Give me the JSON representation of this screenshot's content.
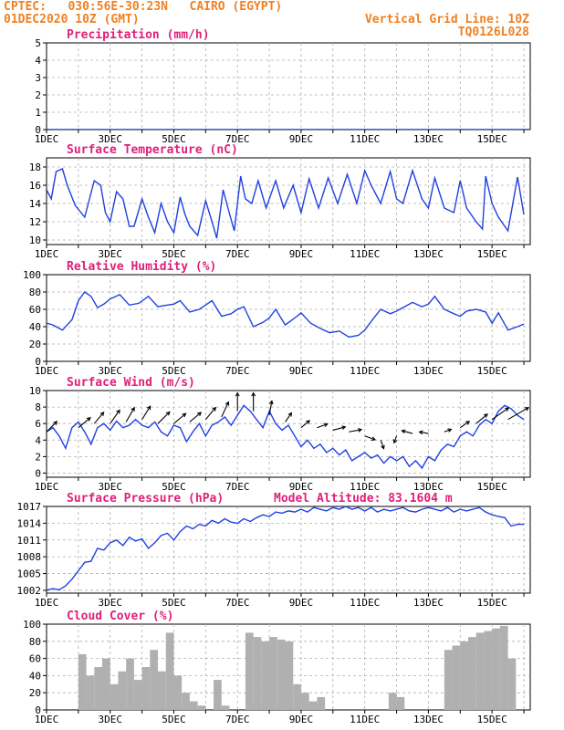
{
  "header": {
    "left_line1": "CPTEC:   030:56E-30:23N   CAIRO (EGYPT)",
    "left_line2": "01DEC2020 10Z (GMT)",
    "right_line1": "Vertical Grid Line: 10Z",
    "right_line2": "TQ0126L028"
  },
  "colors": {
    "header": "#f08020",
    "title": "#e0207a",
    "line": "#2040e0",
    "bar": "#b0b0b0",
    "grid": "#b0b0b0"
  },
  "chart_data": [
    {
      "type": "line",
      "title": "Precipitation (mm/h)",
      "ylim": [
        0,
        5
      ],
      "yticks": [
        0,
        1,
        2,
        3,
        4,
        5
      ],
      "xtick_labels": [
        "1DEC",
        "3DEC",
        "5DEC",
        "7DEC",
        "9DEC",
        "11DEC",
        "13DEC",
        "15DEC"
      ],
      "x": [
        1,
        3,
        5,
        7,
        9,
        11,
        13,
        15,
        16.2
      ],
      "values": [
        0,
        0,
        0,
        0,
        0,
        0,
        0,
        0,
        0
      ]
    },
    {
      "type": "line",
      "title": "Surface Temperature (nC)",
      "ylim": [
        9.5,
        19
      ],
      "yticks": [
        10,
        12,
        14,
        16,
        18
      ],
      "xtick_labels": [
        "1DEC",
        "3DEC",
        "5DEC",
        "7DEC",
        "9DEC",
        "11DEC",
        "13DEC",
        "15DEC"
      ],
      "x": [
        1.0,
        1.15,
        1.3,
        1.5,
        1.65,
        1.9,
        2.2,
        2.5,
        2.7,
        2.85,
        3.0,
        3.2,
        3.4,
        3.6,
        3.75,
        4.0,
        4.2,
        4.4,
        4.6,
        4.8,
        5.0,
        5.2,
        5.35,
        5.5,
        5.75,
        6.0,
        6.2,
        6.35,
        6.55,
        6.7,
        6.9,
        7.1,
        7.25,
        7.45,
        7.65,
        7.9,
        8.2,
        8.45,
        8.75,
        9.0,
        9.25,
        9.55,
        9.85,
        10.15,
        10.45,
        10.75,
        11.0,
        11.2,
        11.5,
        11.8,
        12.0,
        12.2,
        12.5,
        12.8,
        13.0,
        13.2,
        13.5,
        13.8,
        14.0,
        14.2,
        14.5,
        14.7,
        14.8,
        15.0,
        15.2,
        15.5,
        15.8,
        16.0
      ],
      "values": [
        15.5,
        14.5,
        17.5,
        17.8,
        16.0,
        13.8,
        12.5,
        16.5,
        16.0,
        13.0,
        12.0,
        15.3,
        14.5,
        11.5,
        11.5,
        14.5,
        12.5,
        10.8,
        14.0,
        12.0,
        10.8,
        14.7,
        12.8,
        11.5,
        10.5,
        14.3,
        12.0,
        10.2,
        15.5,
        13.5,
        11.0,
        17.0,
        14.5,
        14.0,
        16.5,
        13.5,
        16.5,
        13.5,
        16.0,
        13.0,
        16.7,
        13.5,
        16.8,
        14.0,
        17.2,
        14.0,
        17.6,
        16.0,
        14.0,
        17.5,
        14.5,
        14.0,
        17.6,
        14.5,
        13.5,
        16.8,
        13.5,
        13.0,
        16.5,
        13.5,
        12.0,
        11.2,
        17.0,
        14.0,
        12.5,
        11.0,
        16.9,
        12.8
      ]
    },
    {
      "type": "line",
      "title": "Relative Humidity (%)",
      "ylim": [
        0,
        100
      ],
      "yticks": [
        0,
        20,
        40,
        60,
        80,
        100
      ],
      "xtick_labels": [
        "1DEC",
        "3DEC",
        "5DEC",
        "7DEC",
        "9DEC",
        "11DEC",
        "13DEC",
        "15DEC"
      ],
      "x": [
        1.0,
        1.2,
        1.5,
        1.8,
        2.0,
        2.2,
        2.4,
        2.6,
        2.8,
        3.0,
        3.3,
        3.6,
        3.9,
        4.2,
        4.5,
        4.8,
        5.0,
        5.2,
        5.5,
        5.8,
        6.0,
        6.2,
        6.5,
        6.8,
        7.0,
        7.2,
        7.5,
        7.8,
        8.0,
        8.2,
        8.5,
        8.8,
        9.0,
        9.3,
        9.6,
        9.9,
        10.2,
        10.5,
        10.8,
        11.0,
        11.2,
        11.5,
        11.8,
        12.0,
        12.2,
        12.5,
        12.8,
        13.0,
        13.2,
        13.5,
        13.8,
        14.0,
        14.2,
        14.5,
        14.8,
        15.0,
        15.2,
        15.5,
        15.8,
        16.0
      ],
      "values": [
        44,
        42,
        36,
        48,
        70,
        80,
        75,
        62,
        66,
        72,
        77,
        65,
        67,
        75,
        63,
        65,
        66,
        70,
        57,
        60,
        65,
        70,
        52,
        55,
        60,
        63,
        40,
        45,
        50,
        60,
        42,
        50,
        56,
        44,
        38,
        33,
        35,
        28,
        30,
        36,
        46,
        60,
        55,
        58,
        62,
        68,
        63,
        66,
        75,
        60,
        55,
        52,
        58,
        60,
        57,
        44,
        56,
        36,
        40,
        43
      ]
    },
    {
      "type": "line",
      "title": "Surface Wind (m/s)",
      "ylim": [
        -0.5,
        10
      ],
      "yticks": [
        0,
        2,
        4,
        6,
        8,
        10
      ],
      "xtick_labels": [
        "1DEC",
        "3DEC",
        "5DEC",
        "7DEC",
        "9DEC",
        "11DEC",
        "13DEC",
        "15DEC"
      ],
      "x": [
        1.0,
        1.2,
        1.4,
        1.6,
        1.8,
        2.0,
        2.2,
        2.4,
        2.6,
        2.8,
        3.0,
        3.2,
        3.4,
        3.6,
        3.8,
        4.0,
        4.2,
        4.4,
        4.6,
        4.8,
        5.0,
        5.2,
        5.4,
        5.6,
        5.8,
        6.0,
        6.2,
        6.4,
        6.6,
        6.8,
        7.0,
        7.2,
        7.4,
        7.6,
        7.8,
        8.0,
        8.2,
        8.4,
        8.6,
        8.8,
        9.0,
        9.2,
        9.4,
        9.6,
        9.8,
        10.0,
        10.2,
        10.4,
        10.6,
        10.8,
        11.0,
        11.2,
        11.4,
        11.6,
        11.8,
        12.0,
        12.2,
        12.4,
        12.6,
        12.8,
        13.0,
        13.2,
        13.4,
        13.6,
        13.8,
        14.0,
        14.2,
        14.4,
        14.6,
        14.8,
        15.0,
        15.2,
        15.4,
        15.6,
        15.8,
        16.0
      ],
      "values": [
        5.0,
        5.5,
        4.5,
        3.0,
        5.5,
        6.2,
        5.0,
        3.5,
        5.5,
        6.0,
        5.2,
        6.3,
        5.5,
        5.8,
        6.5,
        5.8,
        5.5,
        6.2,
        5.0,
        4.5,
        5.8,
        5.5,
        3.8,
        5.0,
        6.0,
        4.5,
        5.8,
        6.2,
        6.8,
        5.8,
        7.0,
        8.2,
        7.5,
        6.5,
        5.5,
        7.5,
        6.0,
        5.2,
        5.8,
        4.5,
        3.2,
        4.0,
        3.0,
        3.5,
        2.5,
        3.0,
        2.2,
        2.8,
        1.5,
        2.0,
        2.5,
        1.8,
        2.2,
        1.2,
        2.0,
        1.5,
        2.0,
        0.8,
        1.5,
        0.6,
        2.0,
        1.5,
        2.8,
        3.5,
        3.2,
        4.5,
        5.0,
        4.5,
        5.8,
        6.5,
        6.0,
        7.5,
        8.2,
        7.8,
        7.0,
        6.5
      ]
    },
    {
      "type": "line",
      "title": "Surface Pressure (hPa)",
      "annotation": "Model Altitude: 83.1604 m",
      "ylim": [
        1001.5,
        1017
      ],
      "yticks": [
        1002,
        1005,
        1008,
        1011,
        1014,
        1017
      ],
      "xtick_labels": [
        "1DEC",
        "3DEC",
        "5DEC",
        "7DEC",
        "9DEC",
        "11DEC",
        "13DEC",
        "15DEC"
      ],
      "x": [
        1.0,
        1.2,
        1.4,
        1.6,
        1.8,
        2.0,
        2.2,
        2.4,
        2.6,
        2.8,
        3.0,
        3.2,
        3.4,
        3.6,
        3.8,
        4.0,
        4.2,
        4.4,
        4.6,
        4.8,
        5.0,
        5.2,
        5.4,
        5.6,
        5.8,
        6.0,
        6.2,
        6.4,
        6.6,
        6.8,
        7.0,
        7.2,
        7.4,
        7.6,
        7.8,
        8.0,
        8.2,
        8.4,
        8.6,
        8.8,
        9.0,
        9.2,
        9.4,
        9.6,
        9.8,
        10.0,
        10.2,
        10.4,
        10.6,
        10.8,
        11.0,
        11.2,
        11.4,
        11.6,
        11.8,
        12.0,
        12.2,
        12.4,
        12.6,
        12.8,
        13.0,
        13.2,
        13.4,
        13.6,
        13.8,
        14.0,
        14.2,
        14.4,
        14.6,
        14.8,
        15.0,
        15.2,
        15.4,
        15.6,
        15.8,
        16.0
      ],
      "values": [
        1002.0,
        1002.3,
        1002.1,
        1002.8,
        1004.0,
        1005.5,
        1007.0,
        1007.2,
        1009.5,
        1009.2,
        1010.5,
        1011.0,
        1010.0,
        1011.5,
        1010.8,
        1011.2,
        1009.5,
        1010.5,
        1011.8,
        1012.2,
        1011.0,
        1012.5,
        1013.5,
        1013.0,
        1013.8,
        1013.5,
        1014.5,
        1014.0,
        1014.8,
        1014.2,
        1014.0,
        1014.8,
        1014.3,
        1015.0,
        1015.5,
        1015.2,
        1016.0,
        1015.8,
        1016.2,
        1016.0,
        1016.5,
        1016.0,
        1016.8,
        1016.5,
        1016.2,
        1016.8,
        1016.5,
        1017.0,
        1016.5,
        1016.8,
        1016.2,
        1016.8,
        1016.0,
        1016.5,
        1016.2,
        1016.5,
        1016.8,
        1016.2,
        1016.0,
        1016.5,
        1016.8,
        1016.5,
        1016.2,
        1016.8,
        1016.0,
        1016.5,
        1016.2,
        1016.5,
        1016.8,
        1016.0,
        1015.5,
        1015.2,
        1015.0,
        1013.5,
        1013.8,
        1013.8
      ]
    },
    {
      "type": "bar",
      "title": "Cloud Cover (%)",
      "ylim": [
        0,
        100
      ],
      "yticks": [
        0,
        20,
        40,
        60,
        80,
        100
      ],
      "xtick_labels": [
        "1DEC",
        "3DEC",
        "5DEC",
        "7DEC",
        "9DEC",
        "11DEC",
        "13DEC",
        "15DEC"
      ],
      "x": [
        1.0,
        1.5,
        1.75,
        2.0,
        2.25,
        2.5,
        2.75,
        3.0,
        3.25,
        3.5,
        3.75,
        4.0,
        4.25,
        4.5,
        4.75,
        5.0,
        5.25,
        5.5,
        5.75,
        6.0,
        6.25,
        6.5,
        6.75,
        7.0,
        7.25,
        7.5,
        7.75,
        8.0,
        8.25,
        8.5,
        8.75,
        9.0,
        9.25,
        9.5,
        9.75,
        10.0,
        10.5,
        11.0,
        11.5,
        11.75,
        12.0,
        12.25,
        12.5,
        12.75,
        13.0,
        13.25,
        13.5,
        13.75,
        14.0,
        14.25,
        14.5,
        14.75,
        15.0,
        15.25,
        15.5,
        15.75,
        16.0
      ],
      "values": [
        0,
        0,
        0,
        65,
        40,
        50,
        60,
        30,
        45,
        60,
        35,
        50,
        70,
        45,
        90,
        40,
        20,
        10,
        5,
        0,
        35,
        5,
        0,
        0,
        90,
        85,
        80,
        85,
        82,
        80,
        30,
        20,
        10,
        15,
        0,
        0,
        0,
        0,
        0,
        20,
        15,
        0,
        0,
        0,
        0,
        0,
        70,
        75,
        80,
        85,
        90,
        92,
        95,
        98,
        60,
        0,
        0
      ]
    }
  ]
}
